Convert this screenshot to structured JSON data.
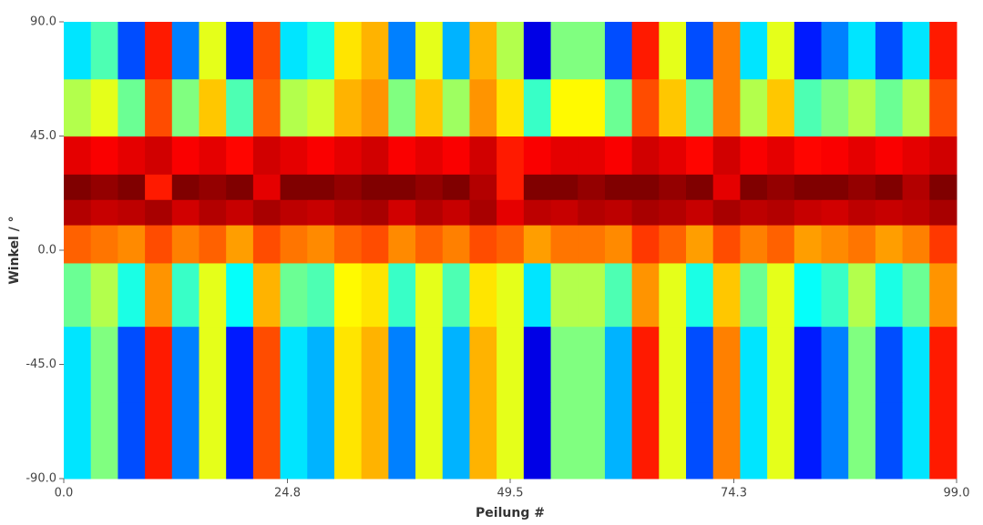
{
  "chart_data": {
    "type": "heatmap",
    "xlabel": "Peilung #",
    "ylabel": "Winkel / °",
    "xlim": [
      0,
      99
    ],
    "ylim": [
      -90,
      90
    ],
    "xticks": [
      {
        "value": 0,
        "label": "0.0"
      },
      {
        "value": 24.8,
        "label": "24.8"
      },
      {
        "value": 49.5,
        "label": "49.5"
      },
      {
        "value": 74.3,
        "label": "74.3"
      },
      {
        "value": 99,
        "label": "99.0"
      }
    ],
    "yticks": [
      {
        "value": -90,
        "label": "-90.0"
      },
      {
        "value": -45,
        "label": "-45.0"
      },
      {
        "value": 0,
        "label": "0.0"
      },
      {
        "value": 45,
        "label": "45.0"
      },
      {
        "value": 90,
        "label": "90.0"
      }
    ],
    "x": [
      1.5,
      4.5,
      7.5,
      10.5,
      13.5,
      16.5,
      19.5,
      22.5,
      25.5,
      28.5,
      31.5,
      34.5,
      37.5,
      40.5,
      43.5,
      46.5,
      49.5,
      52.5,
      55.5,
      58.5,
      61.5,
      64.5,
      67.5,
      70.5,
      73.5,
      76.5,
      79.5,
      82.5,
      85.5,
      88.5,
      91.5,
      94.5,
      97.5
    ],
    "y": [
      -75,
      -45,
      -15,
      5,
      15,
      25,
      35,
      55,
      80
    ],
    "values": [
      [
        0.35,
        0.5,
        0.2,
        0.85,
        0.25,
        0.6,
        0.15,
        0.8,
        0.35,
        0.3,
        0.65,
        0.7,
        0.25,
        0.6,
        0.3,
        0.7,
        0.6,
        0.1,
        0.5,
        0.5,
        0.3,
        0.85,
        0.6,
        0.2,
        0.75,
        0.35,
        0.6,
        0.15,
        0.25,
        0.5,
        0.2,
        0.35,
        0.85
      ],
      [
        0.35,
        0.5,
        0.2,
        0.85,
        0.25,
        0.6,
        0.15,
        0.8,
        0.35,
        0.3,
        0.65,
        0.7,
        0.25,
        0.6,
        0.3,
        0.7,
        0.6,
        0.1,
        0.5,
        0.5,
        0.3,
        0.85,
        0.6,
        0.2,
        0.75,
        0.35,
        0.6,
        0.15,
        0.25,
        0.5,
        0.2,
        0.35,
        0.85
      ],
      [
        0.48,
        0.55,
        0.4,
        0.73,
        0.43,
        0.6,
        0.38,
        0.7,
        0.48,
        0.45,
        0.63,
        0.65,
        0.43,
        0.6,
        0.45,
        0.65,
        0.6,
        0.35,
        0.55,
        0.55,
        0.45,
        0.73,
        0.6,
        0.4,
        0.68,
        0.48,
        0.6,
        0.38,
        0.43,
        0.55,
        0.4,
        0.48,
        0.73
      ],
      [
        0.78,
        0.76,
        0.74,
        0.8,
        0.75,
        0.78,
        0.72,
        0.8,
        0.76,
        0.74,
        0.78,
        0.8,
        0.74,
        0.78,
        0.75,
        0.8,
        0.78,
        0.72,
        0.76,
        0.76,
        0.74,
        0.82,
        0.78,
        0.72,
        0.8,
        0.75,
        0.78,
        0.72,
        0.74,
        0.76,
        0.72,
        0.75,
        0.82
      ],
      [
        0.95,
        0.93,
        0.94,
        0.96,
        0.92,
        0.95,
        0.93,
        0.96,
        0.94,
        0.93,
        0.95,
        0.96,
        0.92,
        0.95,
        0.93,
        0.96,
        0.9,
        0.94,
        0.93,
        0.95,
        0.94,
        0.96,
        0.95,
        0.93,
        0.96,
        0.94,
        0.95,
        0.93,
        0.92,
        0.94,
        0.93,
        0.94,
        0.96
      ],
      [
        1,
        0.98,
        1,
        0.85,
        1,
        0.98,
        1,
        0.9,
        1,
        1,
        0.98,
        1,
        1,
        0.98,
        1,
        0.95,
        0.85,
        1,
        1,
        0.98,
        1,
        1,
        0.98,
        1,
        0.9,
        1,
        0.98,
        1,
        1,
        0.98,
        1,
        0.95,
        1
      ],
      [
        0.9,
        0.88,
        0.9,
        0.92,
        0.88,
        0.9,
        0.87,
        0.92,
        0.9,
        0.88,
        0.9,
        0.92,
        0.88,
        0.9,
        0.88,
        0.92,
        0.85,
        0.88,
        0.9,
        0.9,
        0.88,
        0.92,
        0.9,
        0.87,
        0.92,
        0.88,
        0.9,
        0.87,
        0.88,
        0.9,
        0.88,
        0.9,
        0.92
      ],
      [
        0.55,
        0.6,
        0.48,
        0.8,
        0.5,
        0.68,
        0.45,
        0.78,
        0.55,
        0.58,
        0.7,
        0.73,
        0.5,
        0.68,
        0.53,
        0.73,
        0.65,
        0.43,
        0.63,
        0.63,
        0.48,
        0.8,
        0.68,
        0.48,
        0.75,
        0.55,
        0.68,
        0.45,
        0.5,
        0.55,
        0.48,
        0.55,
        0.8
      ],
      [
        0.35,
        0.45,
        0.2,
        0.85,
        0.25,
        0.6,
        0.15,
        0.8,
        0.35,
        0.4,
        0.65,
        0.7,
        0.25,
        0.6,
        0.3,
        0.7,
        0.55,
        0.1,
        0.5,
        0.5,
        0.2,
        0.85,
        0.6,
        0.2,
        0.75,
        0.35,
        0.6,
        0.15,
        0.25,
        0.35,
        0.2,
        0.35,
        0.85
      ]
    ]
  }
}
